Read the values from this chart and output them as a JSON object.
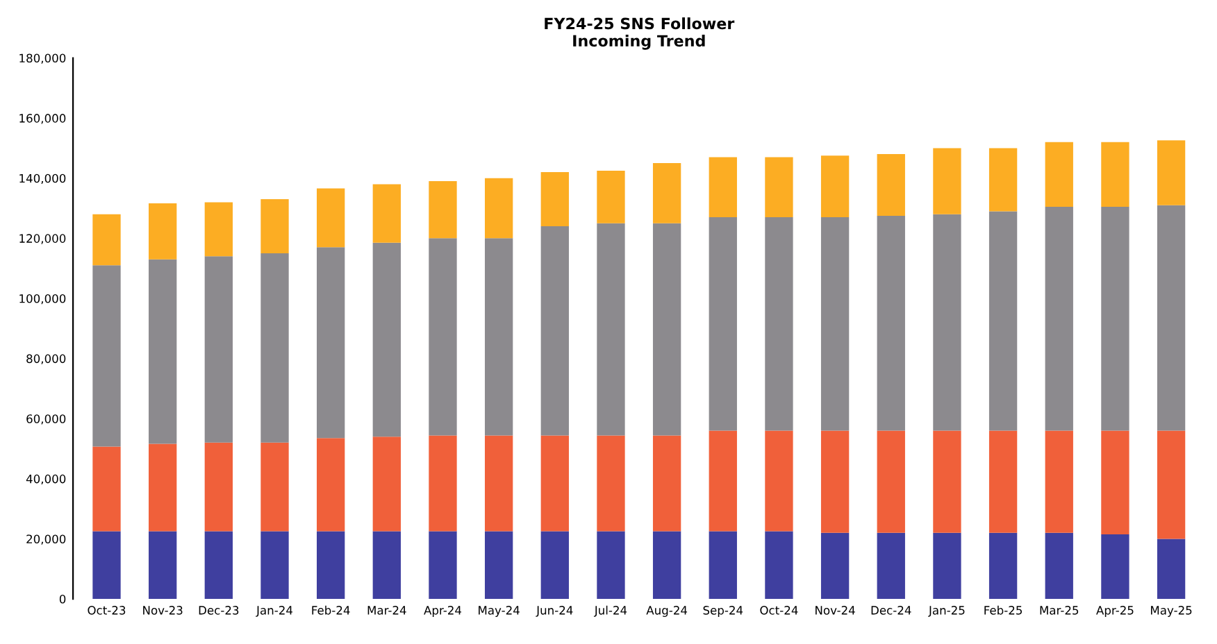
{
  "chart_data": {
    "type": "bar",
    "stacked": true,
    "title": "FY24-25 SNS Follower\nIncoming Trend",
    "categories": [
      "Oct-23",
      "Nov-23",
      "Dec-23",
      "Jan-24",
      "Feb-24",
      "Mar-24",
      "Apr-24",
      "May-24",
      "Jun-24",
      "Jul-24",
      "Aug-24",
      "Sep-24",
      "Oct-24",
      "Nov-24",
      "Dec-24",
      "Jan-25",
      "Feb-25",
      "Mar-25",
      "Apr-25",
      "May-25"
    ],
    "series": [
      {
        "color": "#3f3f9f",
        "values": [
          22500,
          22500,
          22500,
          22500,
          22500,
          22500,
          22500,
          22500,
          22500,
          22500,
          22500,
          22500,
          22500,
          22000,
          22000,
          22000,
          22000,
          22000,
          21500,
          20000
        ]
      },
      {
        "color": "#f0603a",
        "values": [
          28200,
          29100,
          29500,
          29500,
          31000,
          31500,
          31900,
          31900,
          31900,
          31900,
          31900,
          33500,
          33500,
          34000,
          34000,
          34000,
          34000,
          34000,
          34500,
          36000
        ]
      },
      {
        "color": "#8c8a8e",
        "values": [
          60300,
          61400,
          62000,
          63000,
          63500,
          64500,
          65600,
          65600,
          69600,
          70600,
          70600,
          71000,
          71000,
          71000,
          71500,
          72000,
          73000,
          74500,
          74500,
          75000
        ]
      },
      {
        "color": "#fcad23",
        "values": [
          17000,
          18600,
          18000,
          18000,
          19600,
          19500,
          19000,
          20000,
          18000,
          17500,
          20000,
          20000,
          20000,
          20500,
          20500,
          22000,
          21000,
          21500,
          21500,
          21600
        ]
      }
    ],
    "ylim": [
      0,
      180000
    ],
    "yticks": [
      {
        "value": 0,
        "label": "0"
      },
      {
        "value": 20000,
        "label": "20,000"
      },
      {
        "value": 40000,
        "label": "40,000"
      },
      {
        "value": 60000,
        "label": "60,000"
      },
      {
        "value": 80000,
        "label": "80,000"
      },
      {
        "value": 100000,
        "label": "100,000"
      },
      {
        "value": 120000,
        "label": "120,000"
      },
      {
        "value": 140000,
        "label": "140,000"
      },
      {
        "value": 160000,
        "label": "160,000"
      },
      {
        "value": 180000,
        "label": "180,000"
      }
    ],
    "grid": false,
    "legend": false
  }
}
